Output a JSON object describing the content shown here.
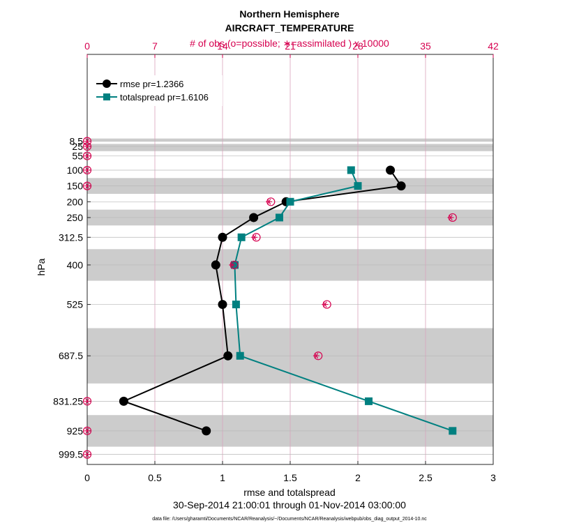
{
  "chart_data": {
    "type": "line",
    "title": "Northern Hemisphere",
    "subtitle": "AIRCRAFT_TEMPERATURE",
    "top_axis_label": "# of obs (o=possible; ∗=assimilated ) x 10000",
    "xlabel": "rmse and totalspread",
    "ylabel": "hPa",
    "date_range": "30-Sep-2014 21:00:01 through 01-Nov-2014 03:00:00",
    "data_file": "data file: /Users/gharamti/Documents/NCAR/Reanalysis/~/Documents/NCAR/Reanalysis/webpub/obs_diag_output_2014-10.nc",
    "xlim": [
      0,
      3
    ],
    "x_ticks": [
      0,
      0.5,
      1,
      1.5,
      2,
      2.5,
      3
    ],
    "x_tick_labels": [
      "0",
      "0.5",
      "1",
      "1.5",
      "2",
      "2.5",
      "3"
    ],
    "top_xlim": [
      0,
      42
    ],
    "top_ticks": [
      0,
      7,
      14,
      21,
      28,
      35,
      42
    ],
    "top_tick_labels": [
      "0",
      "7",
      "14",
      "21",
      "28",
      "35",
      "42"
    ],
    "levels": [
      8.5,
      25,
      55,
      100,
      150,
      200,
      250,
      312.5,
      400,
      525,
      687.5,
      831.25,
      925,
      999.5
    ],
    "level_labels": [
      "8.5",
      "25",
      "55",
      "100",
      "150",
      "200",
      "250",
      "312.5",
      "400",
      "525",
      "687.5",
      "831.25",
      "925",
      "999.5"
    ],
    "layer_bands": [
      [
        0,
        8.5
      ],
      [
        17,
        40
      ],
      [
        125,
        175
      ],
      [
        225,
        275
      ],
      [
        350,
        450
      ],
      [
        600,
        775
      ],
      [
        875,
        975
      ]
    ],
    "series": [
      {
        "name": "rmse pr=1.2366",
        "color": "#000000",
        "marker": "circle",
        "levels": [
          100,
          150,
          200,
          250,
          312.5,
          400,
          525,
          687.5,
          831.25,
          925
        ],
        "values": [
          2.24,
          2.32,
          1.47,
          1.23,
          1.0,
          0.95,
          1.0,
          1.04,
          0.27,
          0.88
        ]
      },
      {
        "name": "totalspread pr=1.6106",
        "color": "#008080",
        "marker": "square",
        "levels": [
          100,
          150,
          200,
          250,
          312.5,
          400,
          525,
          687.5,
          831.25,
          925
        ],
        "values": [
          1.95,
          2.0,
          1.5,
          1.42,
          1.14,
          1.09,
          1.1,
          1.13,
          2.08,
          2.7
        ]
      }
    ],
    "obs_counts": {
      "color": "#d6004f",
      "levels": [
        8.5,
        25,
        55,
        100,
        150,
        200,
        250,
        312.5,
        400,
        525,
        687.5,
        831.25,
        925,
        999.5
      ],
      "possible": [
        0,
        0,
        0,
        0,
        0,
        19.0,
        37.8,
        17.5,
        15.2,
        24.8,
        23.9,
        0,
        0,
        0
      ],
      "assimilated": [
        0,
        0,
        0,
        0,
        0,
        18.8,
        37.6,
        17.3,
        15.0,
        24.6,
        23.7,
        0,
        0,
        0
      ]
    }
  }
}
